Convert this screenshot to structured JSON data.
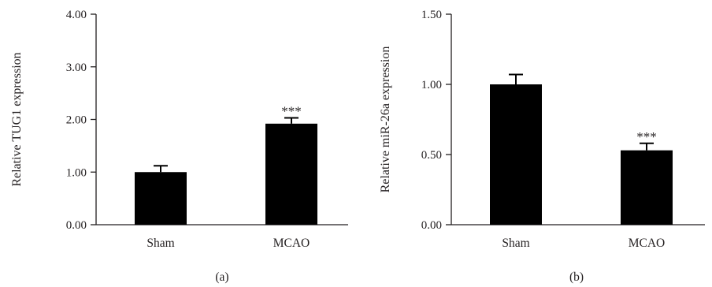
{
  "chart_data": [
    {
      "type": "bar",
      "panel_label": "(a)",
      "ylabel": "Relative TUG1 expression",
      "categories": [
        "Sham",
        "MCAO"
      ],
      "values": [
        1.0,
        1.92
      ],
      "errors": [
        0.12,
        0.11
      ],
      "significance": [
        "",
        "***"
      ],
      "ylim": [
        0,
        4
      ],
      "yticks": [
        0,
        1,
        2,
        3,
        4
      ],
      "ytick_labels": [
        "0.00",
        "1.00",
        "2.00",
        "3.00",
        "4.00"
      ],
      "bar_color": "#000000",
      "grid": false,
      "legend": "none"
    },
    {
      "type": "bar",
      "panel_label": "(b)",
      "ylabel": "Relative miR-26a expression",
      "categories": [
        "Sham",
        "MCAO"
      ],
      "values": [
        1.0,
        0.53
      ],
      "errors": [
        0.07,
        0.05
      ],
      "significance": [
        "",
        "***"
      ],
      "ylim": [
        0,
        1.5
      ],
      "yticks": [
        0,
        0.5,
        1,
        1.5
      ],
      "ytick_labels": [
        "0.00",
        "0.50",
        "1.00",
        "1.50"
      ],
      "bar_color": "#000000",
      "grid": false,
      "legend": "none"
    }
  ]
}
